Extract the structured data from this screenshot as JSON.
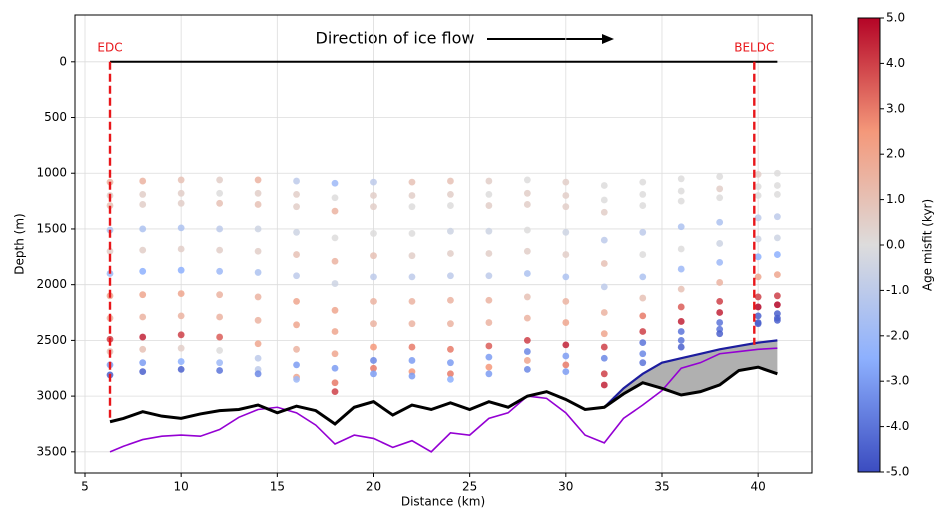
{
  "chart_data": {
    "type": "scatter",
    "xlabel": "Distance (km)",
    "ylabel": "Depth (m)",
    "annotation": "Direction of ice flow",
    "xlim": [
      4.48,
      42.8
    ],
    "ylim": [
      3690,
      -420
    ],
    "xticks": [
      5,
      10,
      15,
      20,
      25,
      30,
      35,
      40
    ],
    "yticks": [
      0,
      500,
      1000,
      1500,
      2000,
      2500,
      3000,
      3500
    ],
    "grid": true,
    "colorbar": {
      "label": "Age misfit (kyr)",
      "clim": [
        -5,
        5
      ],
      "colors": [
        "#3b4cc0",
        "#8db0fe",
        "#dddcdc",
        "#f4987a",
        "#b40426"
      ],
      "ticks": [
        {
          "value": 5,
          "label": "5.0"
        },
        {
          "value": 4,
          "label": "4.0"
        },
        {
          "value": 3,
          "label": "3.0"
        },
        {
          "value": 2,
          "label": "2.0"
        },
        {
          "value": 1,
          "label": "1.0"
        },
        {
          "value": 0,
          "label": "0.0"
        },
        {
          "value": -1,
          "label": "-1.0"
        },
        {
          "value": -2,
          "label": "-2.0"
        },
        {
          "value": -3,
          "label": "-3.0"
        },
        {
          "value": -4,
          "label": "-4.0"
        },
        {
          "value": -5,
          "label": "-5.0"
        }
      ]
    },
    "sites": [
      {
        "label": "EDC",
        "x": 6.3,
        "bottom": 3230,
        "color": "#e8161a"
      },
      {
        "label": "BELDC",
        "x": 39.8,
        "bottom": 2540,
        "color": "#e8161a"
      }
    ],
    "surface": {
      "x": [
        6.3,
        41
      ],
      "values": [
        0,
        0
      ],
      "color": "#000000"
    },
    "x": [
      6.3,
      8,
      10,
      12,
      14,
      16,
      18,
      20,
      22,
      24,
      26,
      28,
      30,
      32,
      34,
      36,
      38,
      40,
      41
    ],
    "layers": [
      {
        "values": [
          1080,
          1070,
          1060,
          1060,
          1060,
          1070,
          1090,
          1080,
          1080,
          1070,
          1070,
          1060,
          1080,
          1110,
          1080,
          1050,
          1030,
          1010,
          1000
        ],
        "misfit": [
          1.5,
          1.5,
          1,
          0.5,
          1.5,
          -1,
          -2,
          -1,
          1,
          1,
          0.5,
          0,
          0.5,
          0,
          0,
          0,
          0,
          0.5,
          0
        ]
      },
      {
        "values": [
          1200,
          1190,
          1180,
          1180,
          1180,
          1190,
          1220,
          1200,
          1200,
          1190,
          1190,
          1180,
          1200,
          1240,
          1190,
          1160,
          1140,
          1120,
          1110
        ],
        "misfit": [
          0.5,
          0.5,
          0.5,
          0,
          0.5,
          0.5,
          0,
          0.5,
          0.5,
          0.5,
          0,
          0.5,
          0.5,
          0,
          0,
          0,
          0.5,
          0,
          0
        ]
      },
      {
        "values": [
          1290,
          1280,
          1270,
          1270,
          1280,
          1300,
          1340,
          1300,
          1300,
          1290,
          1290,
          1280,
          1300,
          1350,
          1290,
          1250,
          1220,
          1200,
          1190
        ],
        "misfit": [
          1,
          0.5,
          0.5,
          1,
          1,
          0.5,
          1.5,
          0.5,
          0,
          0,
          0.5,
          0.5,
          0.5,
          0.5,
          0,
          0,
          0,
          0,
          0
        ]
      },
      {
        "values": [
          1510,
          1500,
          1490,
          1500,
          1500,
          1530,
          1580,
          1540,
          1540,
          1520,
          1520,
          1510,
          1530,
          1600,
          1530,
          1480,
          1440,
          1400,
          1390
        ],
        "misfit": [
          -1.5,
          -1.5,
          -1.5,
          -1,
          -0.5,
          -0.5,
          0,
          0,
          0,
          -0.5,
          -0.5,
          0,
          -0.5,
          -1,
          -1,
          -1.5,
          -1.5,
          -1,
          -1
        ]
      },
      {
        "values": [
          1700,
          1690,
          1680,
          1690,
          1700,
          1730,
          1790,
          1740,
          1740,
          1720,
          1720,
          1700,
          1730,
          1810,
          1730,
          1680,
          1630,
          1590,
          1580
        ],
        "misfit": [
          0.5,
          0.5,
          0.5,
          0.5,
          0.5,
          1,
          1.5,
          1,
          0.5,
          0.5,
          0.5,
          0.5,
          0.5,
          1,
          0,
          0,
          -0.5,
          -0.5,
          -0.5
        ]
      },
      {
        "values": [
          1900,
          1880,
          1870,
          1880,
          1890,
          1920,
          1990,
          1930,
          1930,
          1920,
          1920,
          1900,
          1930,
          2020,
          1930,
          1860,
          1800,
          1750,
          1730
        ],
        "misfit": [
          -2,
          -2.5,
          -2.5,
          -2,
          -1.5,
          -1,
          -0.5,
          -1,
          -1,
          -1,
          -1,
          -1.5,
          -1.5,
          -1,
          -1.5,
          -2,
          -2,
          -2.5,
          -2.5
        ]
      },
      {
        "values": [
          2100,
          2090,
          2080,
          2090,
          2110,
          2150,
          2230,
          2150,
          2150,
          2140,
          2140,
          2110,
          2150,
          2250,
          2120,
          2040,
          1980,
          1930,
          1910
        ],
        "misfit": [
          2,
          2,
          2,
          1.5,
          1.5,
          2,
          2,
          1.5,
          1.5,
          1.5,
          1.5,
          1,
          1.5,
          1.5,
          1,
          1,
          1.5,
          2,
          2
        ]
      },
      {
        "values": [
          2300,
          2290,
          2280,
          2290,
          2320,
          2360,
          2420,
          2350,
          2350,
          2350,
          2340,
          2300,
          2340,
          2440,
          2280,
          2200,
          2150,
          2110,
          2100
        ],
        "misfit": [
          1.5,
          1.5,
          1.5,
          1.5,
          1.5,
          2,
          2,
          1.5,
          1.5,
          1.5,
          1.5,
          1.5,
          2,
          2,
          3,
          3.5,
          4,
          4,
          4
        ]
      },
      {
        "values": [
          2490,
          2470,
          2450,
          2470,
          2530,
          2580,
          2620,
          2560,
          2560,
          2580,
          2550,
          2500,
          2540,
          2560,
          2420,
          2330,
          2250,
          2200,
          2180
        ],
        "misfit": [
          4,
          4.5,
          4,
          3.5,
          2,
          1.5,
          2,
          2.5,
          3,
          3,
          3.5,
          4,
          4.5,
          4,
          4,
          4.5,
          4.5,
          5,
          5
        ]
      },
      {
        "values": [
          2600,
          2580,
          2570,
          2590,
          2660,
          2720,
          2750,
          2680,
          2680,
          2700,
          2650,
          2600,
          2640,
          2660,
          2520,
          2420,
          2340,
          2280,
          2260
        ],
        "misfit": [
          1,
          1,
          0.5,
          0,
          -1,
          -3,
          -3,
          -3.5,
          -3,
          -3,
          -3,
          -3.5,
          -3,
          -3.5,
          -4,
          -4,
          -4,
          -4.5,
          -4.5
        ]
      },
      {
        "values": [
          2720,
          2700,
          2690,
          2700,
          2760,
          2830,
          2880,
          2750,
          2780,
          2800,
          2740,
          2680,
          2720,
          2800,
          2620,
          2500,
          2400,
          2340,
          2320
        ],
        "misfit": [
          -3,
          -3,
          -2.5,
          -2,
          -1,
          2,
          3,
          3,
          2.5,
          3,
          2.5,
          2,
          3,
          4,
          -3.5,
          -4,
          -4,
          -4.5,
          -4.5
        ]
      },
      {
        "values": [
          2810,
          2780,
          2760,
          2770,
          2800,
          2850,
          2960,
          2800,
          2820,
          2850,
          2800,
          2760,
          2780,
          2900,
          2700,
          2560,
          2440,
          2350,
          2300
        ],
        "misfit": [
          -4.5,
          -4.5,
          -4.5,
          -4,
          -3.5,
          -2,
          4,
          -3,
          -3,
          -2.5,
          -3,
          -3.5,
          -3,
          4.5,
          -4,
          -4.5,
          -4.5,
          -4.5,
          -4.5
        ]
      }
    ],
    "bed": {
      "color": "#000000",
      "x": [
        6.3,
        7,
        8,
        9,
        10,
        11,
        12,
        13,
        14,
        15,
        16,
        17,
        18,
        19,
        20,
        21,
        22,
        23,
        24,
        25,
        26,
        27,
        28,
        29,
        30,
        31,
        32,
        33,
        34,
        35,
        36,
        37,
        38,
        39,
        40,
        41
      ],
      "values": [
        3230,
        3200,
        3140,
        3180,
        3200,
        3160,
        3130,
        3120,
        3080,
        3150,
        3090,
        3130,
        3250,
        3100,
        3050,
        3170,
        3080,
        3120,
        3060,
        3120,
        3050,
        3100,
        3000,
        2960,
        3030,
        3120,
        3100,
        2980,
        2880,
        2930,
        2990,
        2960,
        2900,
        2770,
        2740,
        2800
      ],
      "model": [
        3500,
        3450,
        3390,
        3360,
        3350,
        3360,
        3300,
        3190,
        3120,
        3100,
        3150,
        3260,
        3430,
        3350,
        3380,
        3460,
        3400,
        3500,
        3330,
        3350,
        3200,
        3150,
        3000,
        3020,
        3150,
        3350,
        3420,
        3200,
        3080,
        2950,
        2750,
        2700,
        2620,
        2600,
        2580,
        2570
      ],
      "model_color": "#9400d3"
    },
    "upper_bed": {
      "color": "#1c1c9e",
      "fill": "#b0b0b0",
      "x": [
        32,
        33,
        34,
        35,
        36,
        37,
        38,
        39,
        40,
        41
      ],
      "values": [
        3100,
        2930,
        2800,
        2700,
        2660,
        2620,
        2580,
        2550,
        2520,
        2500
      ]
    }
  }
}
